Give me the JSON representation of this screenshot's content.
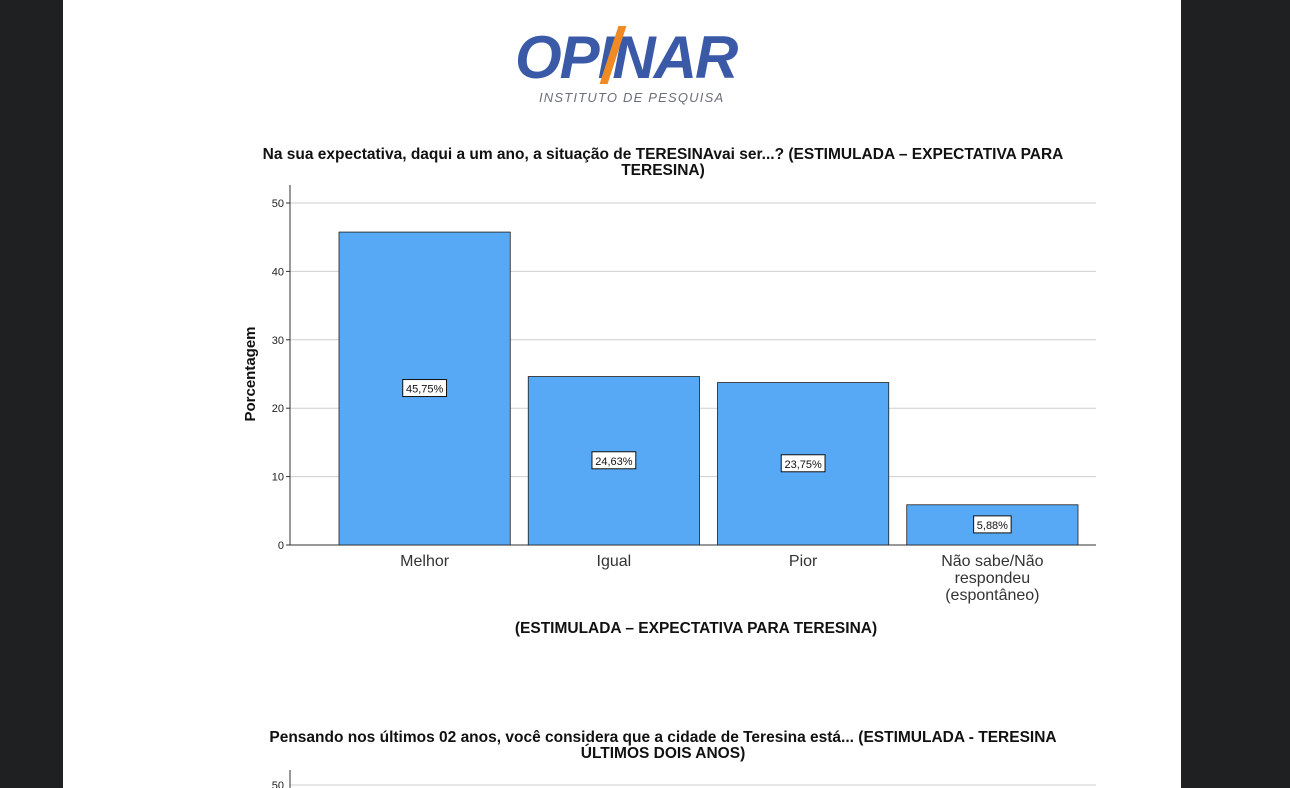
{
  "logo": {
    "word": "OPINAR",
    "subtitle": "INSTITUTO DE PESQUISA"
  },
  "colors": {
    "bar": "#57a9f6",
    "bar_stroke": "#1d1d1d",
    "grid": "#cfcfcf",
    "background": "#ffffff",
    "frame": "#1f2021"
  },
  "chart_data": [
    {
      "type": "bar",
      "title_line1": "Na sua expectativa, daqui a um ano, a situação de TERESINAvai ser...? (ESTIMULADA – EXPECTATIVA PARA",
      "title_line2": "TERESINA)",
      "categories": [
        "Melhor",
        "Igual",
        "Pior",
        "Não sabe/Não respondeu (espontâneo)"
      ],
      "category_lines": [
        [
          "Melhor"
        ],
        [
          "Igual"
        ],
        [
          "Pior"
        ],
        [
          "Não sabe/Não",
          "respondeu",
          "(espontâneo)"
        ]
      ],
      "values": [
        45.75,
        24.63,
        23.75,
        5.88
      ],
      "data_labels": [
        "45,75%",
        "24,63%",
        "23,75%",
        "5,88%"
      ],
      "ylabel": "Porcentagem",
      "xlabel": "(ESTIMULADA – EXPECTATIVA PARA TERESINA)",
      "ylim": [
        0,
        50
      ],
      "yticks": [
        "0",
        "10",
        "20",
        "30",
        "40",
        "50"
      ],
      "grid": true
    },
    {
      "type": "bar",
      "title_line1": "Pensando nos últimos 02 anos, você considera que a cidade de Teresina está... (ESTIMULADA - TERESINA",
      "title_line2": "ÚLTIMOS DOIS ANOS)",
      "yticks": [
        "50"
      ]
    }
  ]
}
